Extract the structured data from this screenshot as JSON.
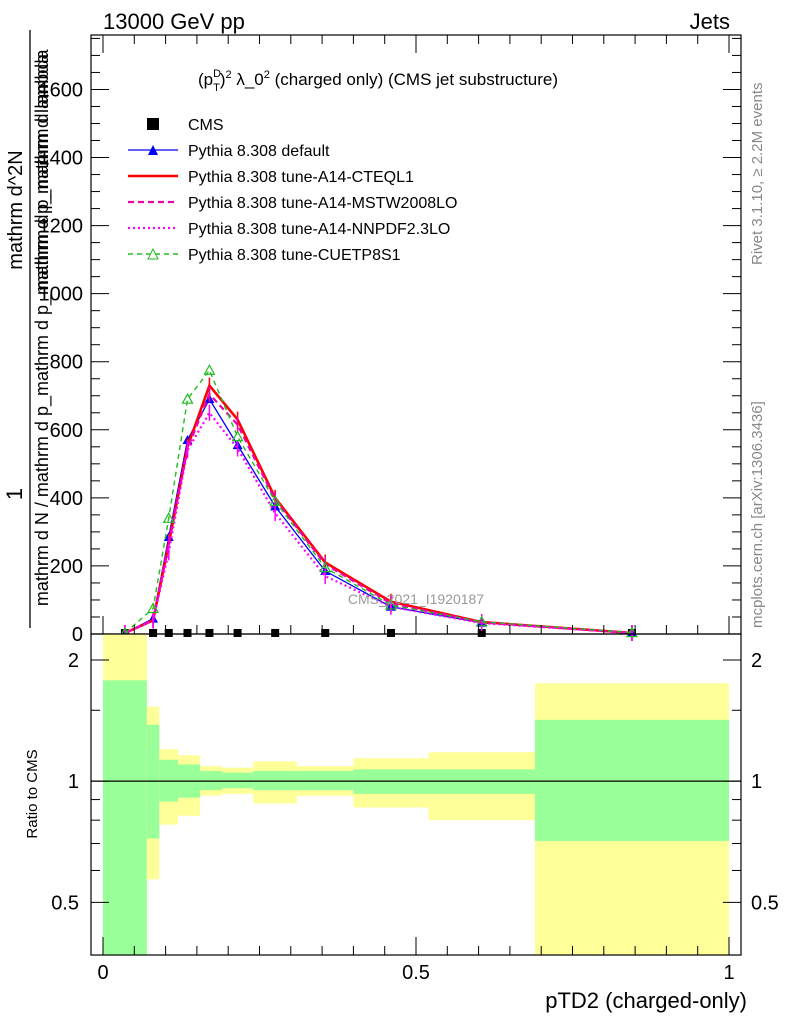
{
  "header": {
    "energy_label": "13000 GeV pp",
    "category_label": "Jets"
  },
  "side_text": {
    "rivet": "Rivet 3.1.10, ≥ 2.2M events",
    "mcplots": "mcplots.cern.ch [arXiv:1306.3436]"
  },
  "watermark": "CMS_2021_I1920187",
  "plot_title": "(p_T^D)^2 λ_0^2 (charged only) (CMS jet substructure)",
  "title_parts": {
    "p": "(p",
    "T": "T",
    "D": "D",
    "close": ")",
    "two": "2",
    "lam": " λ_0",
    "rest": " (charged only) (CMS jet substructure)"
  },
  "y_axis_label": {
    "one": "1",
    "den": "mathrm d N / mathrm d p_mathrm d p_mathrm d p_mathrm d lambda",
    "num": "mathrm d^2N",
    "den2": "mathrm d p_mathrm d lambda"
  },
  "ratio_axis_label": "Ratio to CMS",
  "x_axis_label": "pTD2 (charged-only)",
  "colors": {
    "cms": "#000000",
    "default": "#0000ff",
    "cteql1": "#ff0000",
    "mstw": "#ee00aa",
    "nnpdf": "#ff00ff",
    "cuetp8s1": "#22bb22",
    "band_inner": "#99ff99",
    "band_outer": "#ffff99"
  },
  "chart_data": {
    "type": "line",
    "xlim": [
      0,
      1
    ],
    "ylim": [
      0,
      1760
    ],
    "ratio_ylim": [
      0.37,
      2.32
    ],
    "x_ticks": [
      "0",
      "0.5",
      "1"
    ],
    "y_ticks": [
      "0",
      "200",
      "400",
      "600",
      "800",
      "1000",
      "1200",
      "1400",
      "1600"
    ],
    "ratio_ticks": [
      "0.5",
      "1",
      "2"
    ],
    "legend_position": "top-left",
    "x": [
      0.035,
      0.08,
      0.105,
      0.135,
      0.17,
      0.215,
      0.275,
      0.355,
      0.46,
      0.605,
      0.845
    ],
    "series": [
      {
        "name": "CMS",
        "style": "cms",
        "values": [
          3,
          3,
          3,
          3,
          3,
          3,
          3,
          3,
          3,
          3,
          3
        ]
      },
      {
        "name": "Pythia 8.308 default",
        "style": "default",
        "values": [
          3,
          45,
          285,
          570,
          690,
          555,
          375,
          185,
          80,
          33,
          3
        ]
      },
      {
        "name": "Pythia 8.308 tune-A14-CTEQL1",
        "style": "cteql1",
        "values": [
          3,
          40,
          265,
          550,
          730,
          630,
          400,
          210,
          95,
          35,
          3
        ]
      },
      {
        "name": "Pythia 8.308 tune-A14-MSTW2008LO",
        "style": "mstw",
        "values": [
          3,
          40,
          270,
          545,
          705,
          615,
          395,
          205,
          90,
          34,
          3
        ]
      },
      {
        "name": "Pythia 8.308 tune-A14-NNPDF2.3LO",
        "style": "nnpdf",
        "values": [
          3,
          40,
          240,
          540,
          650,
          545,
          355,
          170,
          80,
          32,
          3
        ]
      },
      {
        "name": "Pythia 8.308 tune-CUETP8S1",
        "style": "cuetp8s1",
        "values": [
          3,
          75,
          340,
          690,
          775,
          580,
          390,
          195,
          85,
          36,
          4
        ]
      }
    ],
    "ratio_bands": [
      {
        "x0": 0.0,
        "x1": 0.07,
        "inner": [
          0.37,
          1.78
        ],
        "outer": [
          0.37,
          2.32
        ]
      },
      {
        "x0": 0.07,
        "x1": 0.09,
        "inner": [
          0.72,
          1.38
        ],
        "outer": [
          0.57,
          1.53
        ]
      },
      {
        "x0": 0.09,
        "x1": 0.12,
        "inner": [
          0.89,
          1.13
        ],
        "outer": [
          0.78,
          1.2
        ]
      },
      {
        "x0": 0.12,
        "x1": 0.155,
        "inner": [
          0.91,
          1.1
        ],
        "outer": [
          0.82,
          1.16
        ]
      },
      {
        "x0": 0.155,
        "x1": 0.19,
        "inner": [
          0.95,
          1.06
        ],
        "outer": [
          0.92,
          1.09
        ]
      },
      {
        "x0": 0.19,
        "x1": 0.24,
        "inner": [
          0.96,
          1.05
        ],
        "outer": [
          0.93,
          1.08
        ]
      },
      {
        "x0": 0.24,
        "x1": 0.31,
        "inner": [
          0.95,
          1.06
        ],
        "outer": [
          0.88,
          1.12
        ]
      },
      {
        "x0": 0.31,
        "x1": 0.4,
        "inner": [
          0.95,
          1.06
        ],
        "outer": [
          0.92,
          1.09
        ]
      },
      {
        "x0": 0.4,
        "x1": 0.52,
        "inner": [
          0.93,
          1.07
        ],
        "outer": [
          0.86,
          1.14
        ]
      },
      {
        "x0": 0.52,
        "x1": 0.69,
        "inner": [
          0.93,
          1.07
        ],
        "outer": [
          0.8,
          1.18
        ]
      },
      {
        "x0": 0.69,
        "x1": 1.0,
        "inner": [
          0.71,
          1.42
        ],
        "outer": [
          0.37,
          1.75
        ]
      }
    ]
  }
}
